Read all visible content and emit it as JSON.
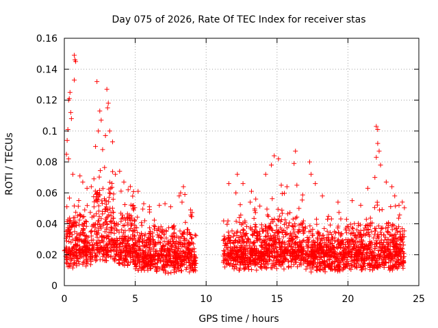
{
  "chart_data": {
    "type": "scatter",
    "title": "Day 075 of 2026, Rate Of TEC Index for receiver stas",
    "xlabel": "GPS time / hours",
    "ylabel": "ROTI / TECUs",
    "xlim": [
      0,
      25
    ],
    "ylim": [
      0,
      0.16
    ],
    "x_ticks": [
      0,
      5,
      10,
      15,
      20,
      25
    ],
    "x_tick_labels": [
      "0",
      "5",
      "10",
      "15",
      "20",
      "25"
    ],
    "y_ticks": [
      0,
      0.02,
      0.04,
      0.06,
      0.08,
      0.1,
      0.12,
      0.14,
      0.16
    ],
    "y_tick_labels": [
      "0",
      "0.02",
      "0.04",
      "0.06",
      "0.08",
      "0.1",
      "0.12",
      "0.14",
      "0.16"
    ],
    "grid": true,
    "marker": "+",
    "color": "#ff0000",
    "data_gap_hours": [
      9.3,
      11.2
    ],
    "series": [
      {
        "name": "ROTI",
        "points": [
          [
            0.3,
            0.12
          ],
          [
            0.35,
            0.121
          ],
          [
            0.4,
            0.125
          ],
          [
            0.45,
            0.112
          ],
          [
            0.25,
            0.101
          ],
          [
            0.2,
            0.094
          ],
          [
            0.5,
            0.108
          ],
          [
            0.15,
            0.085
          ],
          [
            0.3,
            0.082
          ],
          [
            0.6,
            0.072
          ],
          [
            0.7,
            0.149
          ],
          [
            0.75,
            0.146
          ],
          [
            0.8,
            0.145
          ],
          [
            0.7,
            0.133
          ],
          [
            1.1,
            0.071
          ],
          [
            1.3,
            0.067
          ],
          [
            1.6,
            0.063
          ],
          [
            1.9,
            0.064
          ],
          [
            2.3,
            0.132
          ],
          [
            2.5,
            0.113
          ],
          [
            2.6,
            0.107
          ],
          [
            2.4,
            0.1
          ],
          [
            2.2,
            0.09
          ],
          [
            2.7,
            0.088
          ],
          [
            2.9,
            0.097
          ],
          [
            3.0,
            0.127
          ],
          [
            3.1,
            0.118
          ],
          [
            3.05,
            0.115
          ],
          [
            3.2,
            0.1
          ],
          [
            3.4,
            0.093
          ],
          [
            3.6,
            0.072
          ],
          [
            3.9,
            0.074
          ],
          [
            4.2,
            0.067
          ],
          [
            4.5,
            0.062
          ],
          [
            5.2,
            0.061
          ],
          [
            5.6,
            0.053
          ],
          [
            6.0,
            0.051
          ],
          [
            6.7,
            0.052
          ],
          [
            7.1,
            0.053
          ],
          [
            7.5,
            0.051
          ],
          [
            8.1,
            0.058
          ],
          [
            8.2,
            0.06
          ],
          [
            8.4,
            0.064
          ],
          [
            8.5,
            0.059
          ],
          [
            8.3,
            0.054
          ],
          [
            8.9,
            0.049
          ],
          [
            11.6,
            0.066
          ],
          [
            12.2,
            0.072
          ],
          [
            12.6,
            0.066
          ],
          [
            12.1,
            0.06
          ],
          [
            13.2,
            0.061
          ],
          [
            13.5,
            0.056
          ],
          [
            14.2,
            0.072
          ],
          [
            14.6,
            0.078
          ],
          [
            14.8,
            0.084
          ],
          [
            15.1,
            0.082
          ],
          [
            15.3,
            0.065
          ],
          [
            15.7,
            0.064
          ],
          [
            16.3,
            0.087
          ],
          [
            16.2,
            0.079
          ],
          [
            16.4,
            0.065
          ],
          [
            17.3,
            0.08
          ],
          [
            17.4,
            0.072
          ],
          [
            17.7,
            0.066
          ],
          [
            18.2,
            0.058
          ],
          [
            19.3,
            0.054
          ],
          [
            20.3,
            0.055
          ],
          [
            20.9,
            0.052
          ],
          [
            21.4,
            0.063
          ],
          [
            21.9,
            0.07
          ],
          [
            22.0,
            0.083
          ],
          [
            22.1,
            0.092
          ],
          [
            22.0,
            0.103
          ],
          [
            22.1,
            0.101
          ],
          [
            22.2,
            0.087
          ],
          [
            22.3,
            0.078
          ],
          [
            22.7,
            0.067
          ],
          [
            23.1,
            0.064
          ],
          [
            23.3,
            0.058
          ],
          [
            23.6,
            0.052
          ]
        ],
        "density_profile": [
          {
            "start": 0.0,
            "end": 1.0,
            "base": 0.016,
            "spread": 0.03,
            "peak": 0.06
          },
          {
            "start": 1.0,
            "end": 2.0,
            "base": 0.017,
            "spread": 0.03,
            "peak": 0.062
          },
          {
            "start": 2.0,
            "end": 3.5,
            "base": 0.02,
            "spread": 0.045,
            "peak": 0.085
          },
          {
            "start": 3.5,
            "end": 5.0,
            "base": 0.017,
            "spread": 0.03,
            "peak": 0.065
          },
          {
            "start": 5.0,
            "end": 7.0,
            "base": 0.014,
            "spread": 0.02,
            "peak": 0.05
          },
          {
            "start": 7.0,
            "end": 9.3,
            "base": 0.013,
            "spread": 0.02,
            "peak": 0.05
          },
          {
            "start": 11.2,
            "end": 14.0,
            "base": 0.015,
            "spread": 0.022,
            "peak": 0.055
          },
          {
            "start": 14.0,
            "end": 17.0,
            "base": 0.016,
            "spread": 0.025,
            "peak": 0.06
          },
          {
            "start": 17.0,
            "end": 20.0,
            "base": 0.014,
            "spread": 0.02,
            "peak": 0.05
          },
          {
            "start": 20.0,
            "end": 24.0,
            "base": 0.015,
            "spread": 0.022,
            "peak": 0.055
          }
        ]
      }
    ]
  }
}
